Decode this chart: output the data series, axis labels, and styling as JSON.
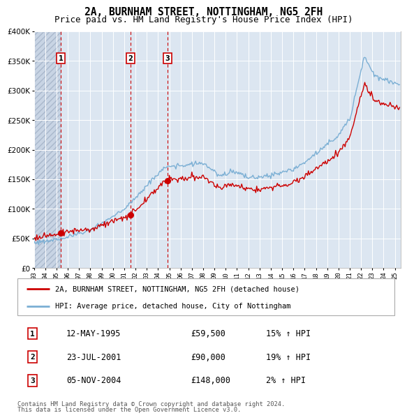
{
  "title": "2A, BURNHAM STREET, NOTTINGHAM, NG5 2FH",
  "subtitle": "Price paid vs. HM Land Registry's House Price Index (HPI)",
  "ylim": [
    0,
    400000
  ],
  "yticks": [
    0,
    50000,
    100000,
    150000,
    200000,
    250000,
    300000,
    350000,
    400000
  ],
  "hpi_color": "#7bafd4",
  "price_color": "#cc0000",
  "plot_bg_color": "#dce6f1",
  "grid_color": "#ffffff",
  "dashed_line_color": "#cc0000",
  "sale_dates_dec": [
    1995.37,
    2001.56,
    2004.84
  ],
  "sale_prices": [
    59500,
    90000,
    148000
  ],
  "sales": [
    {
      "date": "12-MAY-1995",
      "price": 59500,
      "label": "1",
      "pct": "15%",
      "direction": "↑"
    },
    {
      "date": "23-JUL-2001",
      "price": 90000,
      "label": "2",
      "pct": "19%",
      "direction": "↑"
    },
    {
      "date": "05-NOV-2004",
      "price": 148000,
      "label": "3",
      "pct": "2%",
      "direction": "↑"
    }
  ],
  "legend_line1": "2A, BURNHAM STREET, NOTTINGHAM, NG5 2FH (detached house)",
  "legend_line2": "HPI: Average price, detached house, City of Nottingham",
  "footer1": "Contains HM Land Registry data © Crown copyright and database right 2024.",
  "footer2": "This data is licensed under the Open Government Licence v3.0."
}
